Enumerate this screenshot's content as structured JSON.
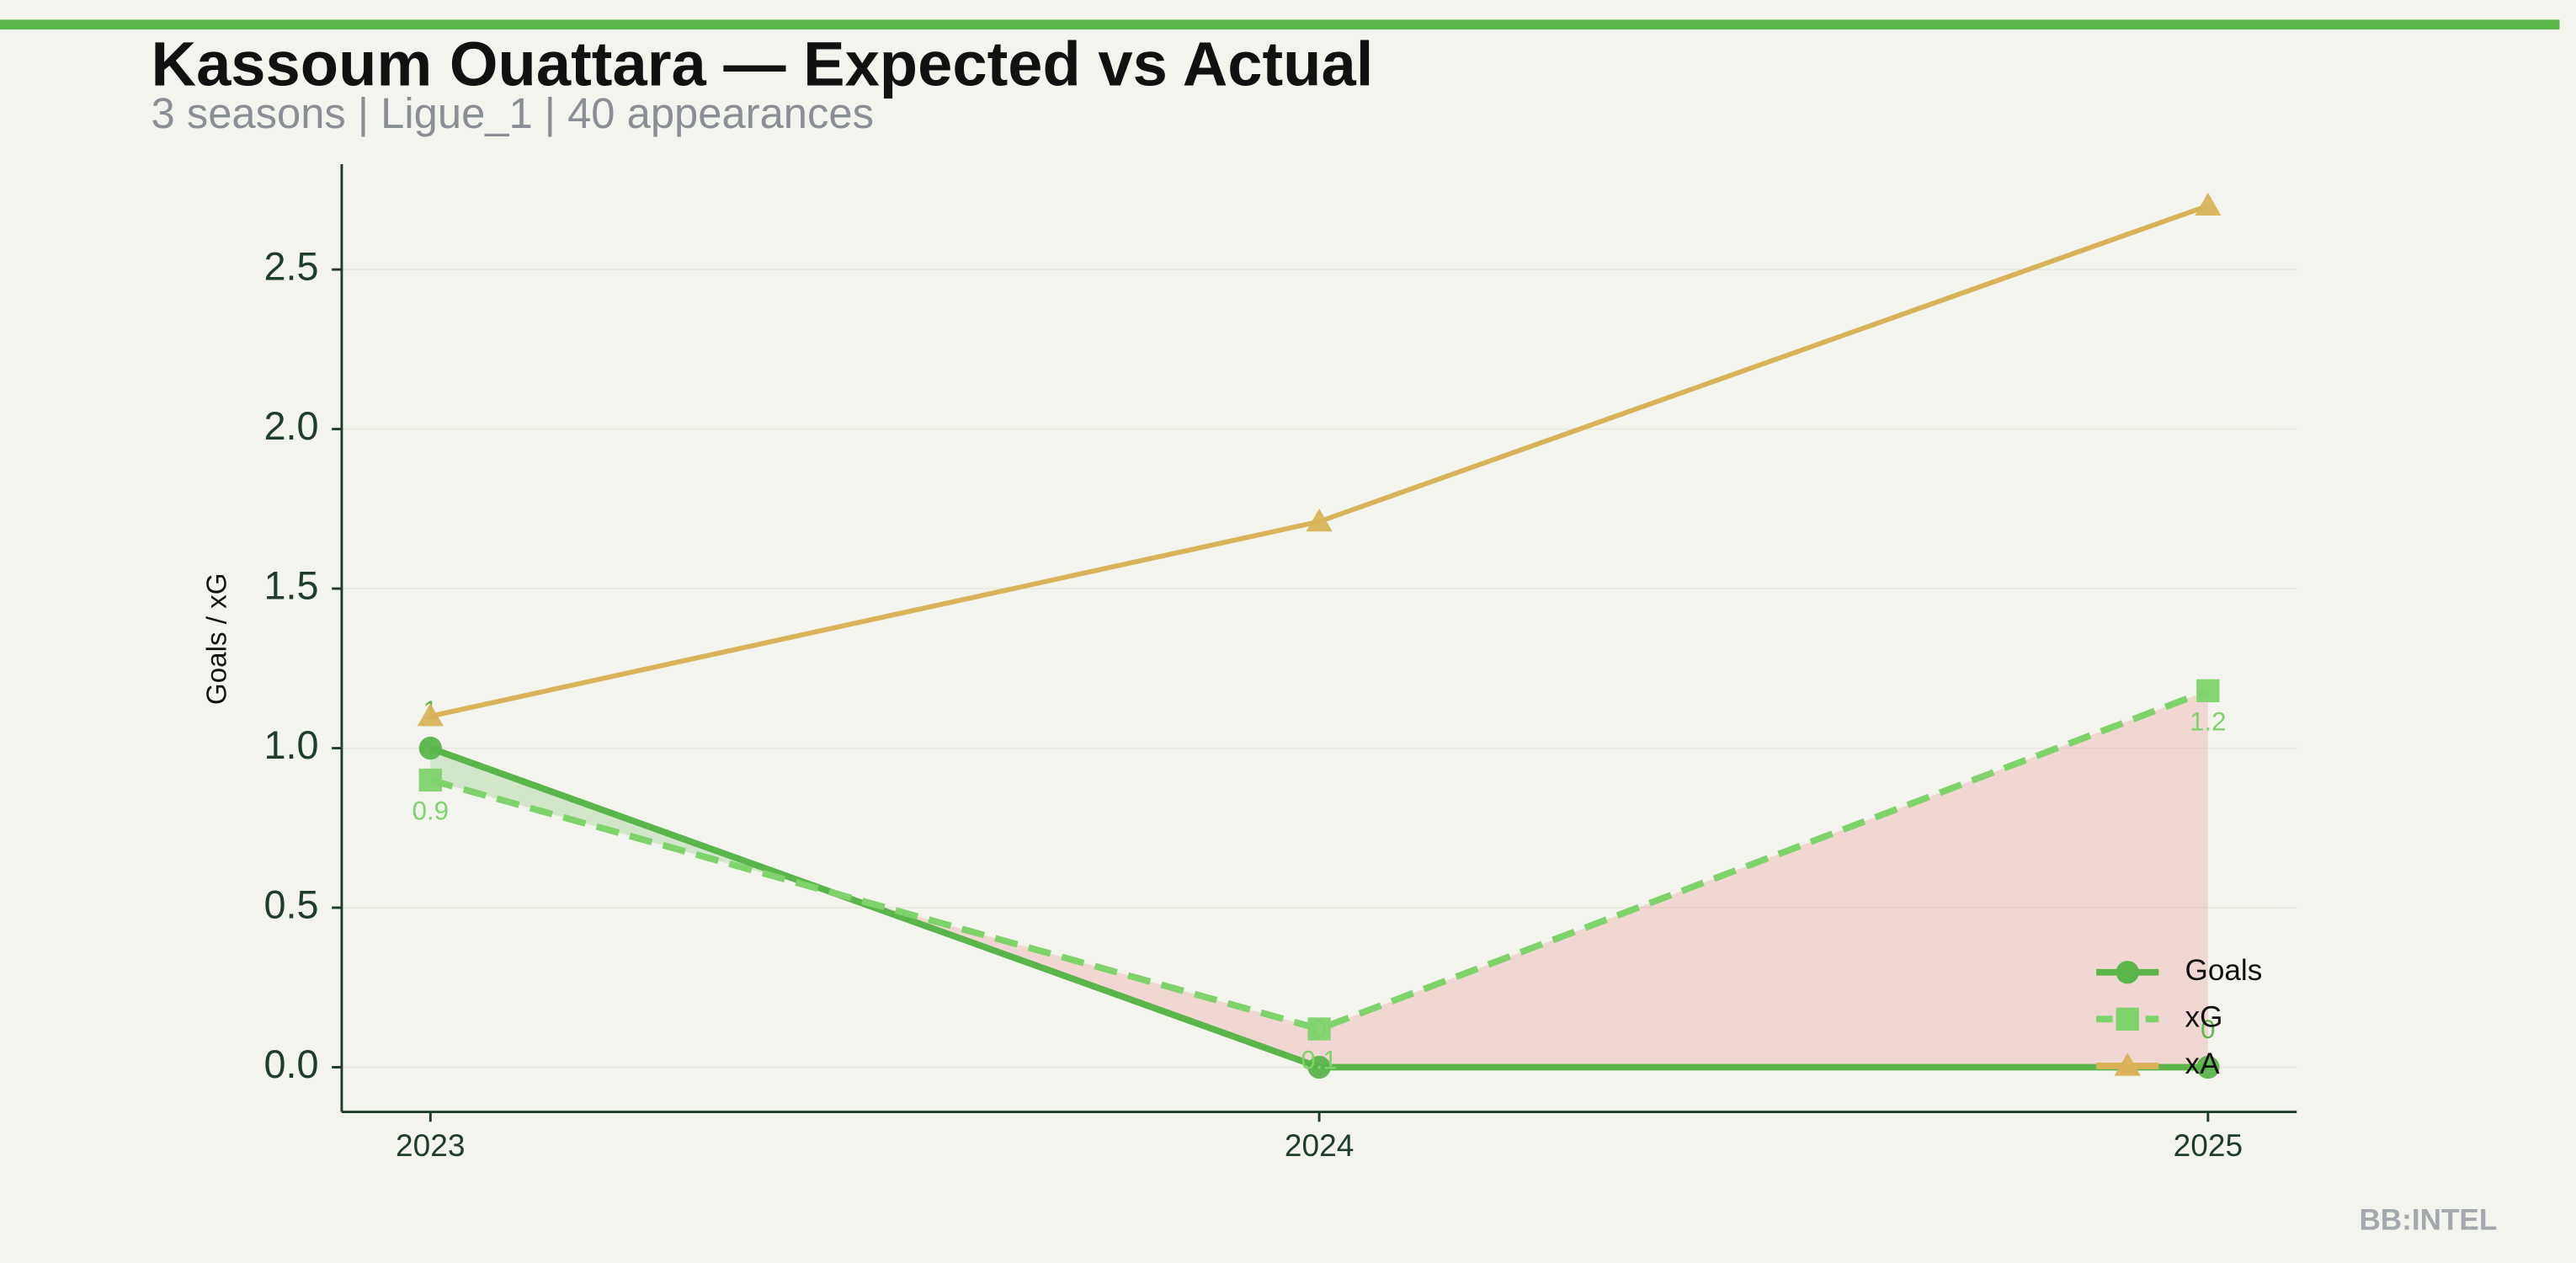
{
  "chart_data": {
    "type": "line",
    "title": "Kassoum Ouattara — Expected vs Actual",
    "subtitle": "3 seasons | Ligue_1 | 40 appearances",
    "y_label": "Goals / xG",
    "watermark": "BB:INTEL",
    "categories": [
      "2023",
      "2024",
      "2025"
    ],
    "series": [
      {
        "name": "Goals",
        "color": "#5ab54b",
        "marker": "circle",
        "dashed": false,
        "values": [
          1,
          0,
          0
        ]
      },
      {
        "name": "xG",
        "color": "#7ed36b",
        "marker": "square",
        "dashed": true,
        "values": [
          0.9,
          0.12,
          1.18
        ],
        "value_labels": [
          "0.9",
          "0.1",
          "1.2"
        ]
      },
      {
        "name": "xA",
        "color": "#d8b35a",
        "marker": "triangle",
        "dashed": false,
        "values": [
          1.1,
          1.71,
          2.7
        ]
      }
    ],
    "ylim": [
      -0.14,
      2.83
    ],
    "yticks": [
      {
        "value": 0,
        "label": "0.0"
      },
      0.5,
      {
        "value": 1,
        "label": "1.0"
      },
      1.5,
      {
        "value": 2,
        "label": "2.0"
      },
      2.5
    ],
    "legend": "lower right"
  }
}
